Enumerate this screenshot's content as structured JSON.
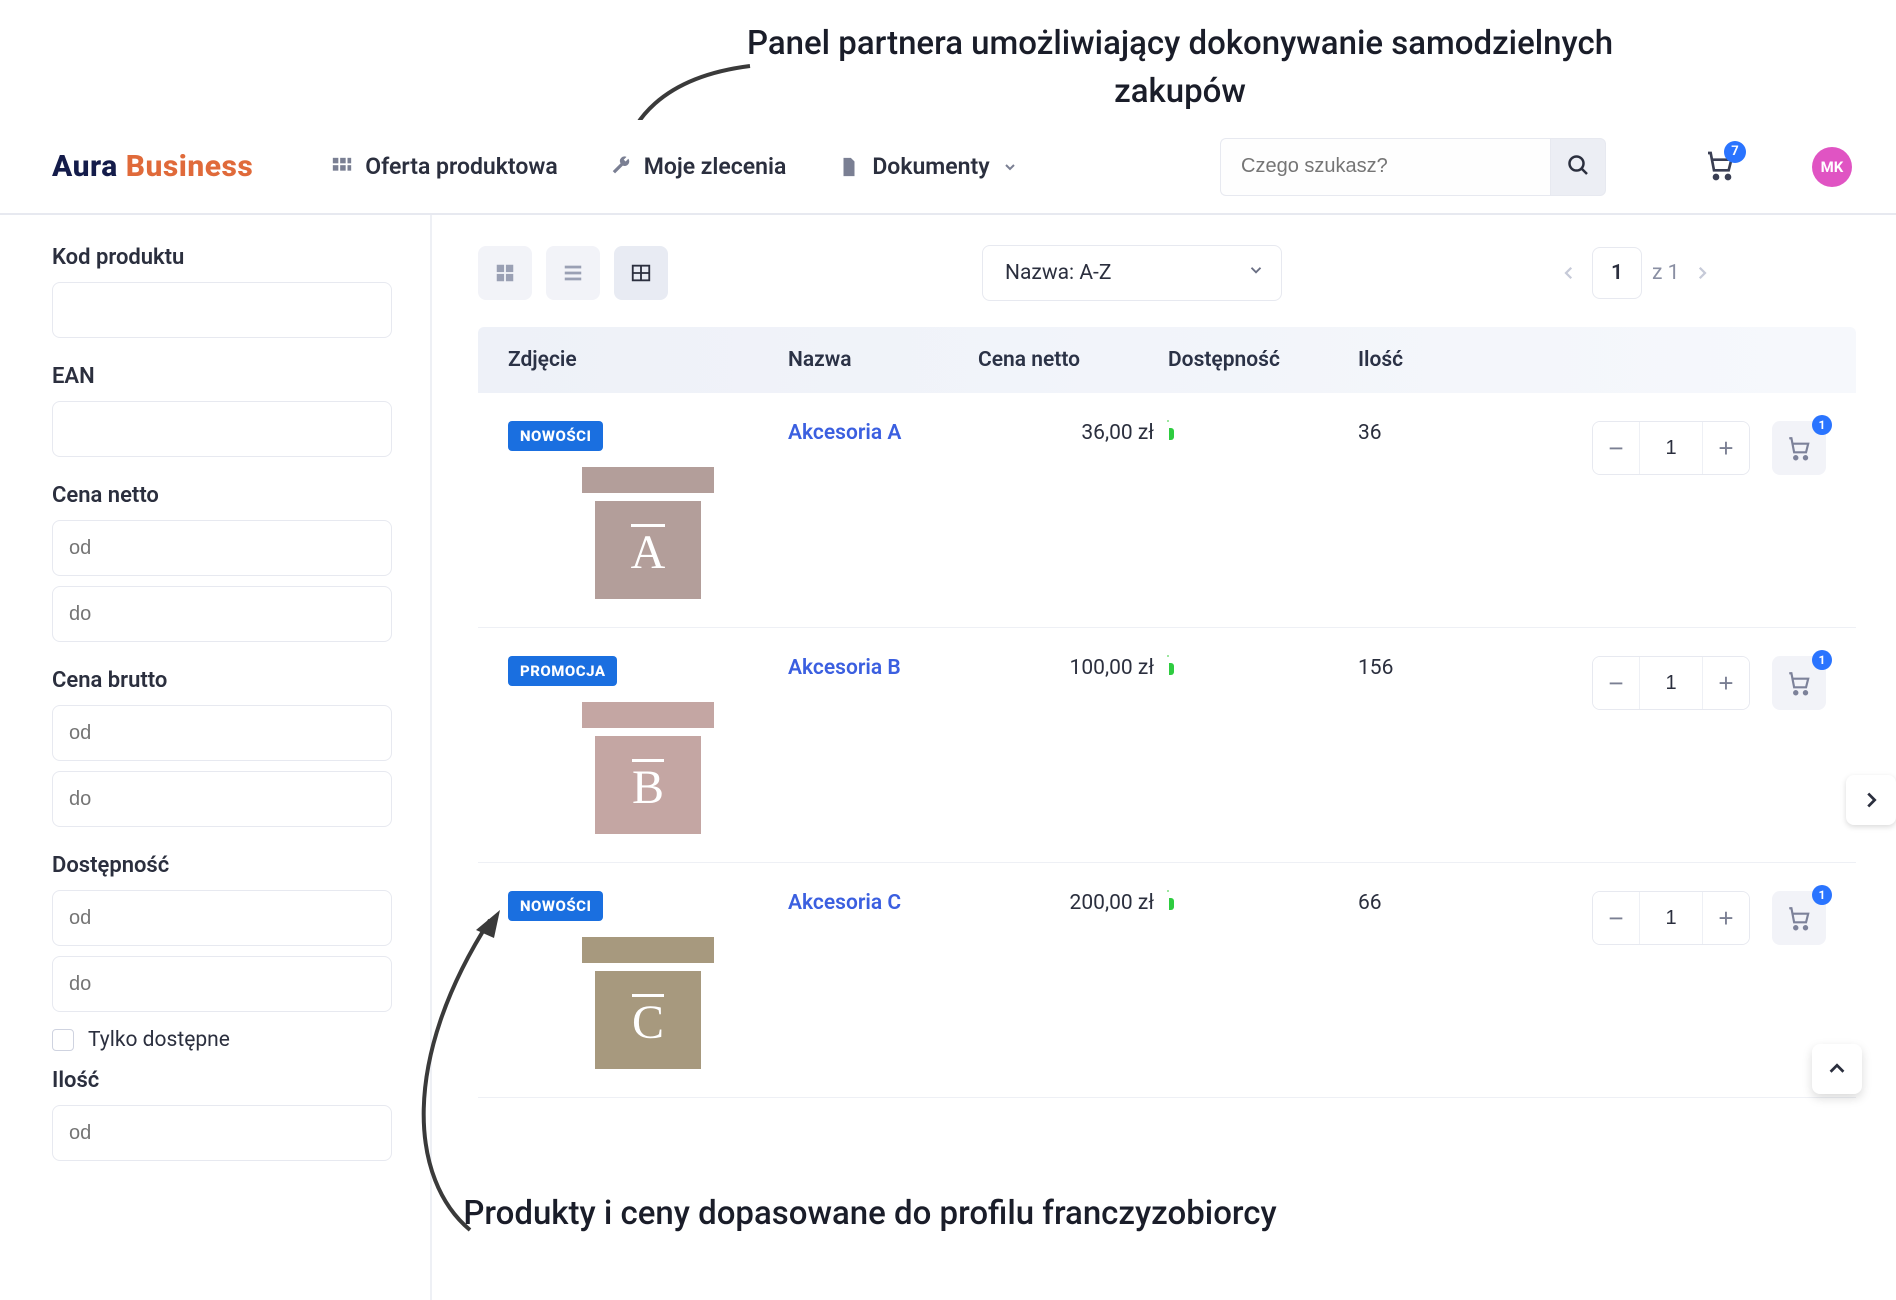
{
  "annotations": {
    "top": "Panel partnera umożliwiający\ndokonywanie samodzielnych zakupów",
    "bottom": "Produkty i ceny dopasowane do profilu\nfranczyzobiorcy"
  },
  "colors": {
    "accent": "#2a74ff",
    "logo_primary": "#141c4a",
    "logo_secondary": "#e06a3a",
    "avatar_bg": "#e054c3",
    "badge_bg": "#1a6fe0",
    "availability_green": "#2ecc40",
    "border": "#e7e9f0",
    "muted_text": "#8a8fa3"
  },
  "header": {
    "logo_part1": "Aura",
    "logo_part2": "Business",
    "nav": {
      "offer": "Oferta produktowa",
      "orders": "Moje zlecenia",
      "documents": "Dokumenty"
    },
    "search_placeholder": "Czego szukasz?",
    "cart_count": "7",
    "avatar_initials": "MK"
  },
  "sidebar": {
    "product_code_label": "Kod produktu",
    "ean_label": "EAN",
    "net_price_label": "Cena netto",
    "gross_price_label": "Cena brutto",
    "availability_label": "Dostępność",
    "only_available_label": "Tylko dostępne",
    "quantity_label": "Ilość",
    "placeholders": {
      "from": "od",
      "to": "do"
    }
  },
  "toolbar": {
    "sort_value": "Nazwa: A-Z",
    "page_current": "1",
    "page_total_label": "z 1"
  },
  "table": {
    "headers": {
      "image": "Zdjęcie",
      "name": "Nazwa",
      "net_price": "Cena netto",
      "availability": "Dostępność",
      "quantity": "Ilość"
    },
    "badges": {
      "new": "NOWOŚCI",
      "promo": "PROMOCJA"
    },
    "rows": [
      {
        "badge_key": "new",
        "letter": "A",
        "thumb_color": "#b39e9a",
        "name": "Akcesoria A",
        "price": "36,00 zł",
        "qty": "36",
        "step_value": "1",
        "cart_badge": "1"
      },
      {
        "badge_key": "promo",
        "letter": "B",
        "thumb_color": "#c4a6a3",
        "name": "Akcesoria B",
        "price": "100,00 zł",
        "qty": "156",
        "step_value": "1",
        "cart_badge": "1"
      },
      {
        "badge_key": "new",
        "letter": "C",
        "thumb_color": "#a7997e",
        "name": "Akcesoria C",
        "price": "200,00 zł",
        "qty": "66",
        "step_value": "1",
        "cart_badge": "1"
      }
    ]
  }
}
